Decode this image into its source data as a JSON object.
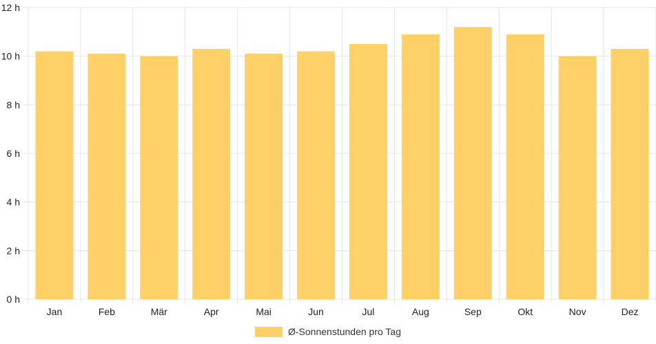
{
  "chart_data": {
    "type": "bar",
    "categories": [
      "Jan",
      "Feb",
      "Mär",
      "Apr",
      "Mai",
      "Jun",
      "Jul",
      "Aug",
      "Sep",
      "Okt",
      "Nov",
      "Dez"
    ],
    "series": [
      {
        "name": "Ø-Sonnenstunden pro Tag",
        "values": [
          10.2,
          10.1,
          10.0,
          10.3,
          10.1,
          10.2,
          10.5,
          10.9,
          11.2,
          10.9,
          10.0,
          10.3
        ],
        "color": "#fdd068"
      }
    ],
    "ylim": [
      0,
      12
    ],
    "yticks": [
      0,
      2,
      4,
      6,
      8,
      10,
      12
    ],
    "ytick_suffix": " h",
    "grid": true,
    "legend_position": "bottom"
  }
}
